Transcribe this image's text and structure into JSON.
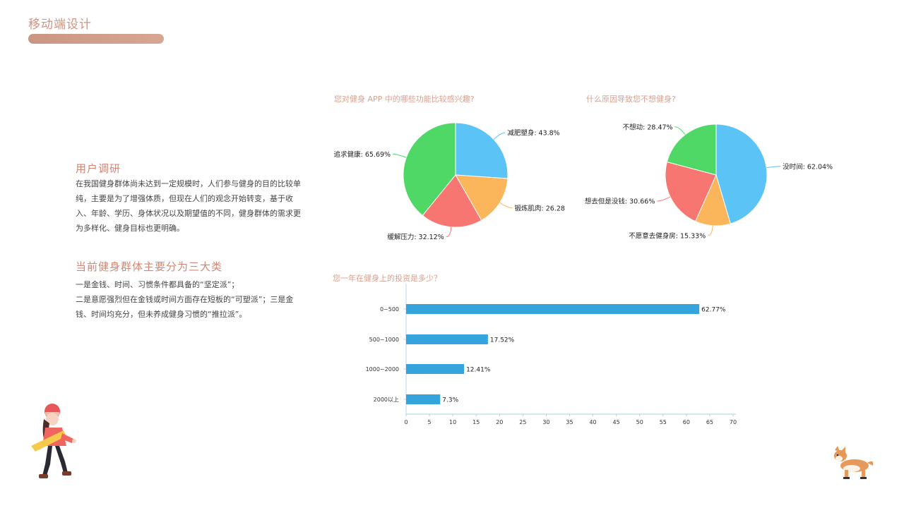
{
  "header": {
    "title": "移动端设计"
  },
  "left": {
    "section1_title": "用户调研",
    "section1_body": "在我国健身群体尚未达到一定规模时，人们参与健身的目的比较单纯，主要是为了增强体质，但现在人们的观念开始转变，基于收入、年龄、学历、身体状况以及期望值的不同，健身群体的需求更为多样化、健身目标也更明确。",
    "section2_title": "当前健身群体主要分为三大类",
    "section2_line1": "一是金钱、时间、习惯条件都具备的“坚定派”；",
    "section2_line2": "二是意愿强烈但在金钱或时间方面存在短板的“可塑派”；三是金钱、时间均充分，但未养成健身习惯的“推拉派”。"
  },
  "colors": {
    "blue": "#5cc3f6",
    "orange": "#fbb55a",
    "red": "#f87671",
    "green": "#4fd866",
    "bar": "#35a3dc",
    "accent": "#d2927e"
  },
  "icons": [
    "girl-illustration-icon",
    "corgi-dog-icon"
  ],
  "chart_data": [
    {
      "type": "pie",
      "title": "您对健身 APP 中的哪些功能比较感兴趣?",
      "slices": [
        {
          "label": "减肥塑身: 43.8%",
          "value": 43.8,
          "color": "#5cc3f6"
        },
        {
          "label": "锻炼肌肉: 26.28%",
          "value": 26.28,
          "color": "#fbb55a"
        },
        {
          "label": "缓解压力: 32.12%",
          "value": 32.12,
          "color": "#f87671"
        },
        {
          "label": "追求健康: 65.69%",
          "value": 65.69,
          "color": "#4fd866"
        }
      ]
    },
    {
      "type": "pie",
      "title": "什么原因导致您不想健身?",
      "slices": [
        {
          "label": "没时间: 62.04%",
          "value": 62.04,
          "color": "#5cc3f6"
        },
        {
          "label": "不愿意去健身房: 15.33%",
          "value": 15.33,
          "color": "#fbb55a"
        },
        {
          "label": "想去但是没钱: 30.66%",
          "value": 30.66,
          "color": "#f87671"
        },
        {
          "label": "不想动: 28.47%",
          "value": 28.47,
          "color": "#4fd866"
        }
      ]
    },
    {
      "type": "bar",
      "orientation": "horizontal",
      "title": "您一年在健身上的投资是多少？",
      "categories": [
        "0~500",
        "500~1000",
        "1000~2000",
        "2000以上"
      ],
      "values": [
        62.77,
        17.52,
        12.41,
        7.3
      ],
      "value_labels": [
        "62.77%",
        "17.52%",
        "12.41%",
        "7.3%"
      ],
      "xlim": [
        0,
        70
      ],
      "xticks": [
        0,
        5,
        10,
        15,
        20,
        25,
        30,
        35,
        40,
        45,
        50,
        55,
        60,
        65,
        70
      ],
      "grid": false
    }
  ]
}
